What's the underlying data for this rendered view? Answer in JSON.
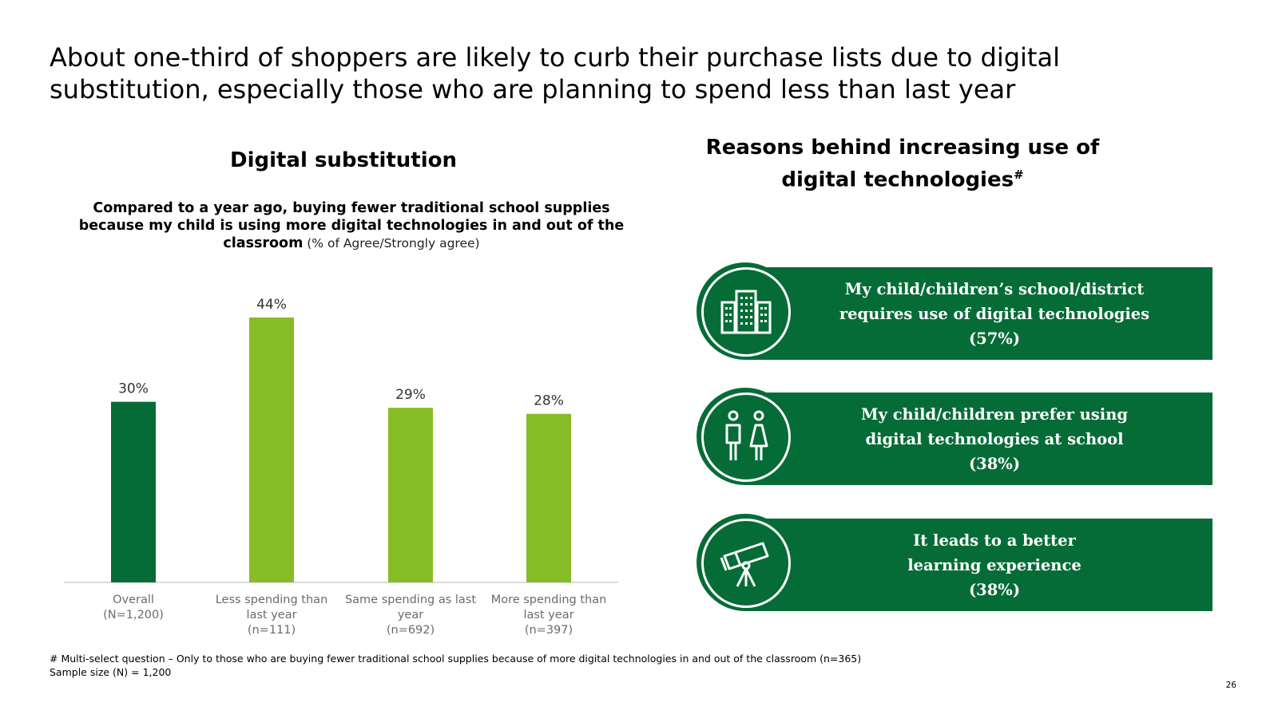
{
  "headline": "About one-third of shoppers are likely to curb their purchase lists due to digital substitution, especially those who are planning to spend less than last year",
  "left_section": {
    "title": "Digital substitution",
    "question_bold": "Compared to a year ago, buying fewer traditional school supplies because my child is using more digital technologies in and out of the classroom",
    "question_note": " (% of Agree/Strongly agree)"
  },
  "right_section": {
    "title": "Reasons behind increasing use of digital technologies",
    "title_sup": "#",
    "reasons": [
      {
        "icon": "buildings-icon",
        "line1": "My child/children’s school/district",
        "line2": "requires use of digital technologies",
        "pct": "(57%)"
      },
      {
        "icon": "children-icon",
        "line1": "My child/children prefer using",
        "line2": "digital technologies at school",
        "pct": "(38%)"
      },
      {
        "icon": "telescope-icon",
        "line1": "It leads to a better",
        "line2": "learning experience",
        "pct": "(38%)"
      }
    ]
  },
  "chart_data": {
    "type": "bar",
    "categories": [
      [
        "Overall",
        "(N=1,200)"
      ],
      [
        "Less spending than",
        "last year",
        "(n=111)"
      ],
      [
        "Same spending as last",
        "year",
        "(n=692)"
      ],
      [
        "More spending than",
        "last year",
        "(n=397)"
      ]
    ],
    "values": [
      30,
      44,
      29,
      28
    ],
    "labels": [
      "30%",
      "44%",
      "29%",
      "28%"
    ],
    "ylim": [
      0,
      44
    ],
    "colors": [
      "#066c37",
      "#86bc25",
      "#86bc25",
      "#86bc25"
    ],
    "xlabel": "",
    "ylabel": ""
  },
  "footnote": {
    "line1": "# Multi-select question – Only to those who are buying fewer traditional school supplies because of more digital technologies in and out of the classroom (n=365)",
    "line2": "Sample size (N) = 1,200"
  },
  "page_number": "26",
  "colors": {
    "dark_green": "#066c37",
    "light_green": "#86bc25"
  }
}
